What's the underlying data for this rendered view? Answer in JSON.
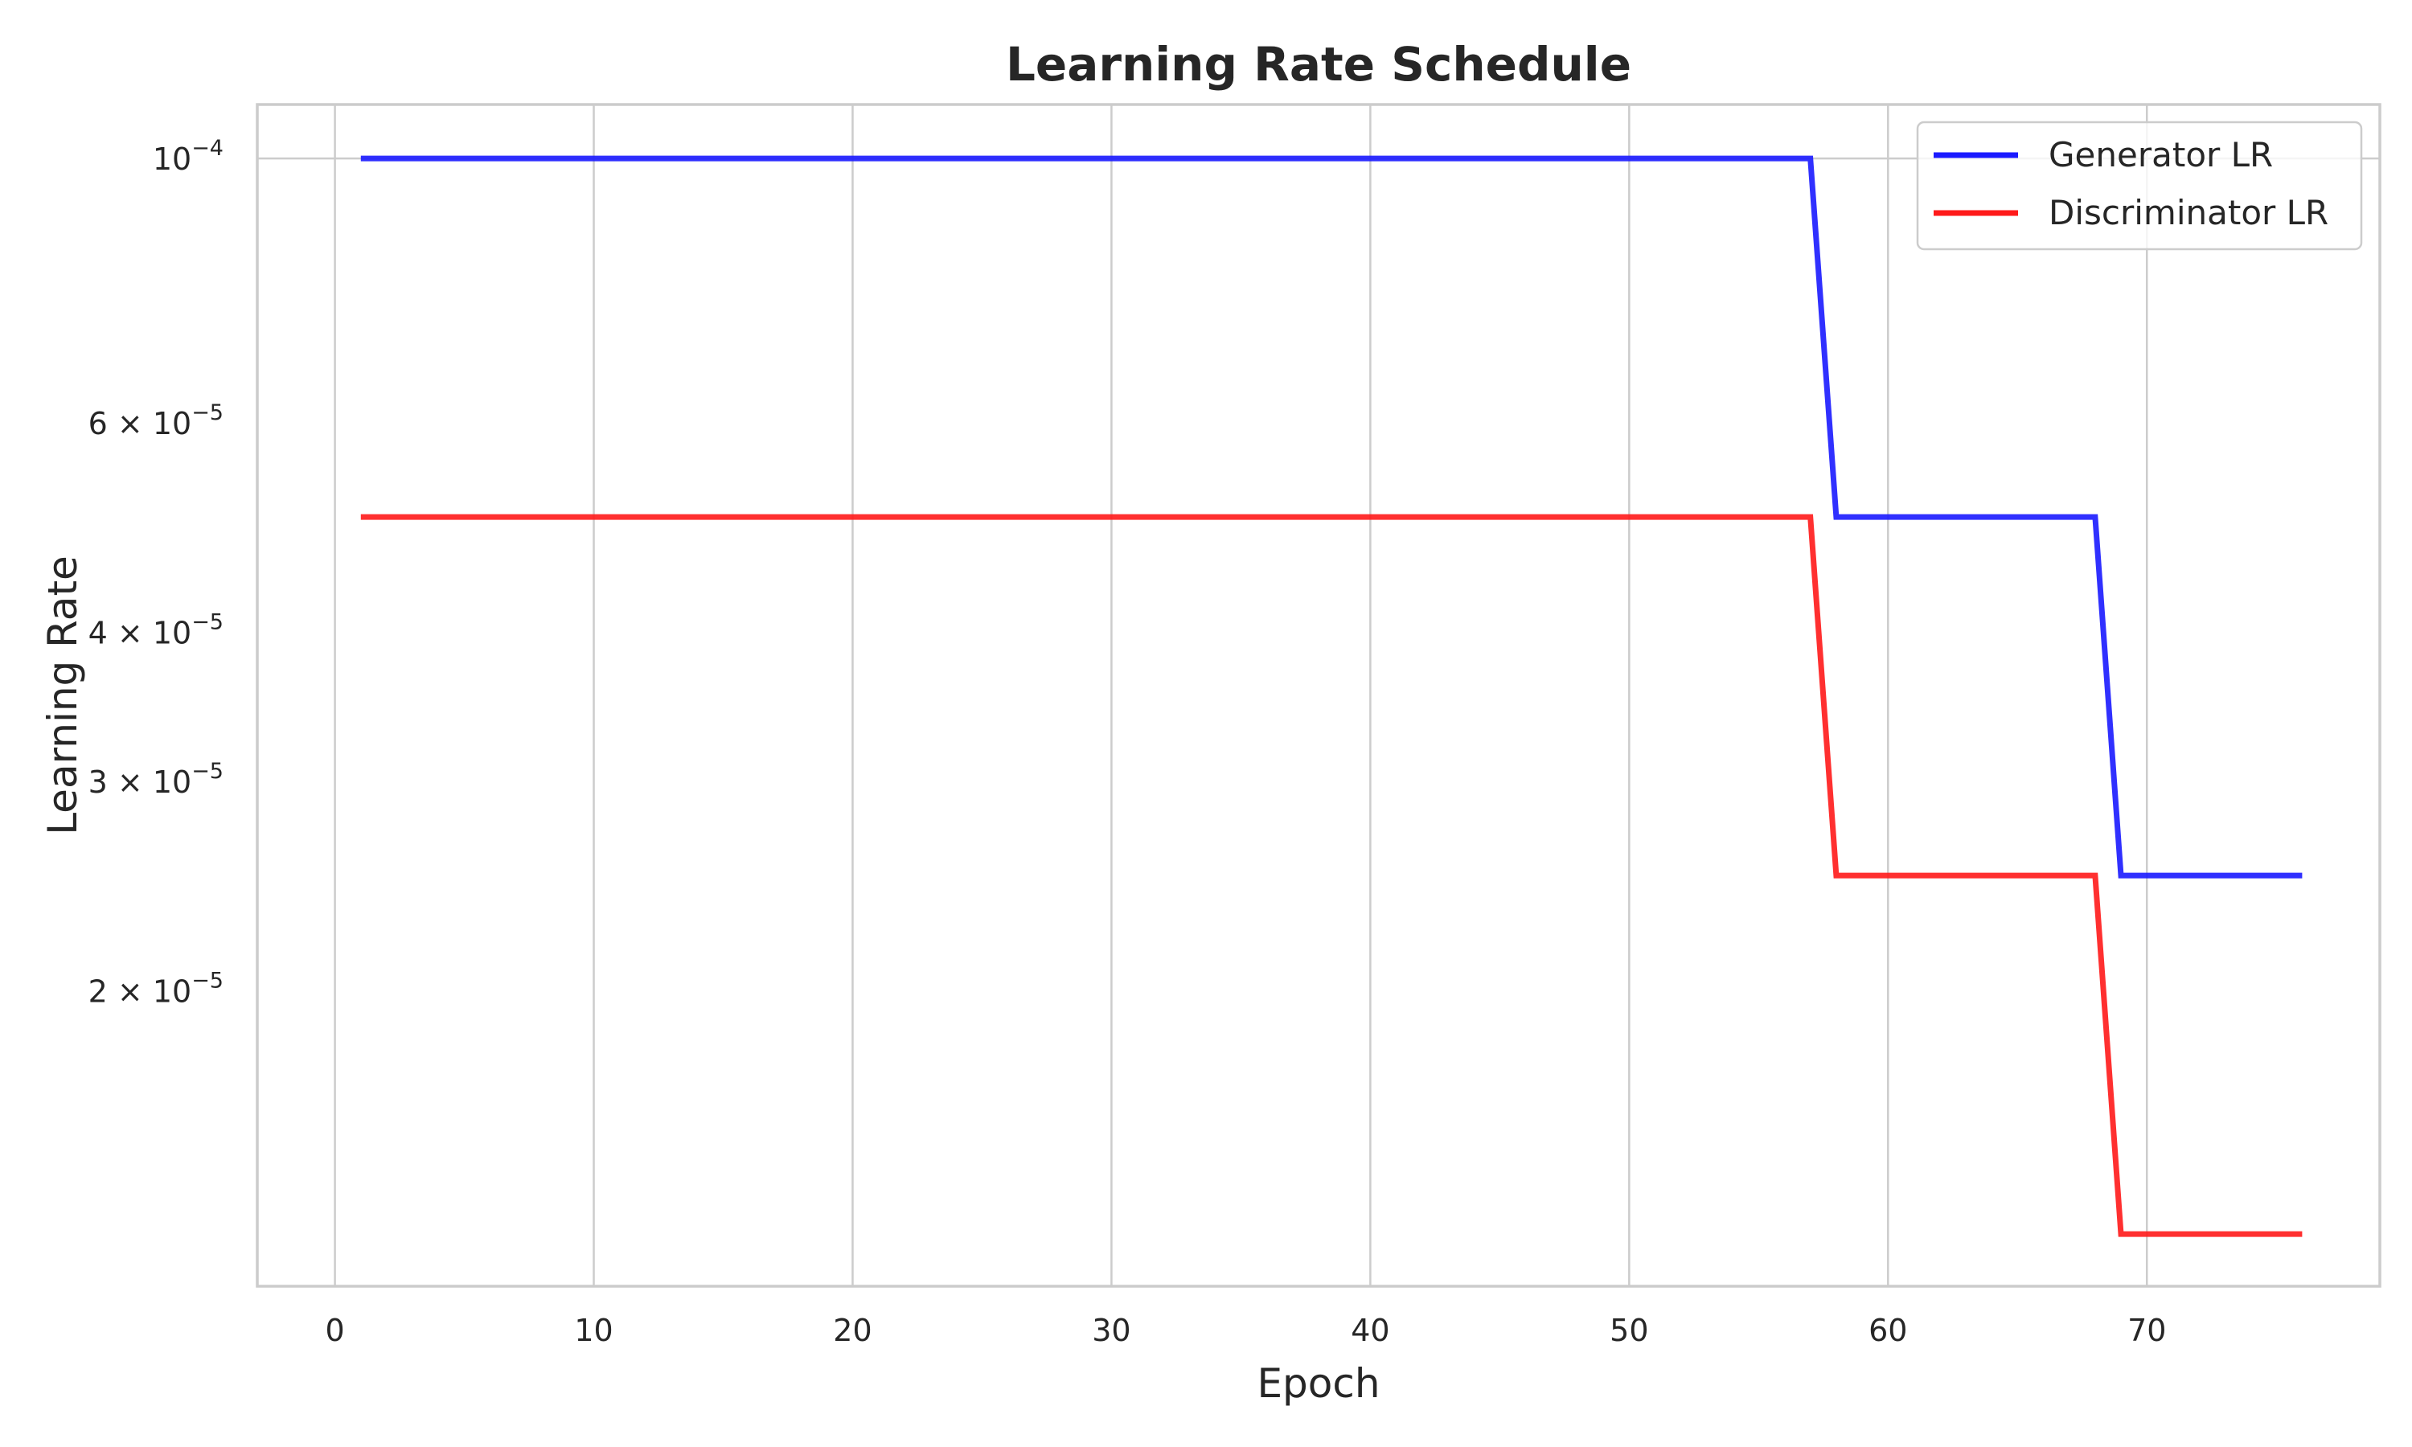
{
  "chart_data": {
    "type": "line",
    "title": "Learning Rate Schedule",
    "xlabel": "Epoch",
    "ylabel": "Learning Rate",
    "xlim": [
      -3,
      79
    ],
    "ylim": [
      1.13e-05,
      0.000111
    ],
    "yscale": "log",
    "grid": true,
    "legend_position": "top-right",
    "x_ticks": [
      0,
      10,
      20,
      30,
      40,
      50,
      60,
      70
    ],
    "x_tick_labels": [
      "0",
      "10",
      "20",
      "30",
      "40",
      "50",
      "60",
      "70"
    ],
    "y_ticks": [
      {
        "value": 0.0001,
        "mantissa": "",
        "base": "10",
        "exponent": "−4"
      },
      {
        "value": 6e-05,
        "mantissa": "6 × ",
        "base": "10",
        "exponent": "−5"
      },
      {
        "value": 4e-05,
        "mantissa": "4 × ",
        "base": "10",
        "exponent": "−5"
      },
      {
        "value": 3e-05,
        "mantissa": "3 × ",
        "base": "10",
        "exponent": "−5"
      },
      {
        "value": 2e-05,
        "mantissa": "2 × ",
        "base": "10",
        "exponent": "−5"
      }
    ],
    "series": [
      {
        "name": "Generator LR",
        "color": "#1a1aff",
        "points": [
          [
            1,
            0.0001
          ],
          [
            57,
            0.0001
          ],
          [
            58,
            5e-05
          ],
          [
            68,
            5e-05
          ],
          [
            69,
            2.5e-05
          ],
          [
            76,
            2.5e-05
          ]
        ]
      },
      {
        "name": "Discriminator LR",
        "color": "#ff1a1a",
        "points": [
          [
            1,
            5e-05
          ],
          [
            57,
            5e-05
          ],
          [
            58,
            2.5e-05
          ],
          [
            68,
            2.5e-05
          ],
          [
            69,
            1.25e-05
          ],
          [
            76,
            1.25e-05
          ]
        ]
      }
    ]
  }
}
